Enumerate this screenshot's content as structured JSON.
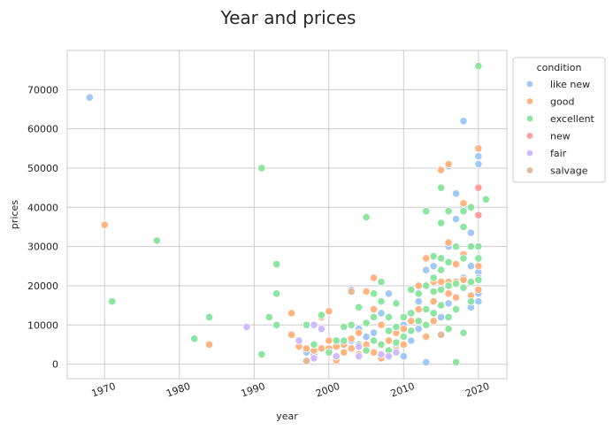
{
  "chart_data": {
    "type": "scatter",
    "title": "Year and prices",
    "xlabel": "year",
    "ylabel": "prices",
    "xlim": [
      1965,
      2023.8
    ],
    "ylim": [
      -3700,
      80000
    ],
    "xticks": [
      1970,
      1980,
      1990,
      2000,
      2010,
      2020
    ],
    "xtick_labels": [
      "1970",
      "1980",
      "1990",
      "2000",
      "2010",
      "2020"
    ],
    "yticks": [
      0,
      10000,
      20000,
      30000,
      40000,
      50000,
      60000,
      70000
    ],
    "ytick_labels": [
      "0",
      "10000",
      "20000",
      "30000",
      "40000",
      "50000",
      "60000",
      "70000"
    ],
    "grid": true,
    "legend": {
      "title": "condition",
      "placement": "outside-top-right",
      "entries": [
        {
          "label": "like new",
          "color": "#a1c9f4"
        },
        {
          "label": "good",
          "color": "#ffb482"
        },
        {
          "label": "excellent",
          "color": "#8de5a1"
        },
        {
          "label": "new",
          "color": "#ff9f9b"
        },
        {
          "label": "fair",
          "color": "#d0bbff"
        },
        {
          "label": "salvage",
          "color": "#debb9b"
        }
      ]
    },
    "series": [
      {
        "name": "like new",
        "color": "#a1c9f4",
        "points": [
          [
            1968,
            68000
          ],
          [
            1997,
            3000
          ],
          [
            1998,
            2500
          ],
          [
            2000,
            3500
          ],
          [
            2003,
            6000
          ],
          [
            2004,
            9000
          ],
          [
            2005,
            7000
          ],
          [
            2006,
            8000
          ],
          [
            2007,
            13000
          ],
          [
            2008,
            18000
          ],
          [
            2009,
            4000
          ],
          [
            2010,
            2000
          ],
          [
            2010,
            10000
          ],
          [
            2011,
            6000
          ],
          [
            2012,
            9000
          ],
          [
            2012,
            16000
          ],
          [
            2013,
            500
          ],
          [
            2013,
            24000
          ],
          [
            2014,
            25000
          ],
          [
            2015,
            12000
          ],
          [
            2016,
            15500
          ],
          [
            2016,
            50500
          ],
          [
            2016,
            30000
          ],
          [
            2017,
            43500
          ],
          [
            2017,
            37000
          ],
          [
            2018,
            62000
          ],
          [
            2018,
            40000
          ],
          [
            2018,
            22000
          ],
          [
            2019,
            33500
          ],
          [
            2019,
            14500
          ],
          [
            2019,
            25000
          ],
          [
            2020,
            53000
          ],
          [
            2020,
            51000
          ],
          [
            2020,
            23500
          ],
          [
            2020,
            22000
          ],
          [
            2020,
            18000
          ],
          [
            2020,
            16000
          ]
        ]
      },
      {
        "name": "good",
        "color": "#ffb482",
        "points": [
          [
            1970,
            35500
          ],
          [
            1984,
            5000
          ],
          [
            1995,
            7500
          ],
          [
            1995,
            13000
          ],
          [
            1996,
            4500
          ],
          [
            1997,
            4000
          ],
          [
            1998,
            3500
          ],
          [
            1999,
            4000
          ],
          [
            1999,
            12000
          ],
          [
            2000,
            13500
          ],
          [
            2000,
            6000
          ],
          [
            2000,
            4000
          ],
          [
            2001,
            1000
          ],
          [
            2001,
            4500
          ],
          [
            2002,
            3000
          ],
          [
            2002,
            5000
          ],
          [
            2003,
            4000
          ],
          [
            2003,
            6500
          ],
          [
            2004,
            2500
          ],
          [
            2004,
            8000
          ],
          [
            2005,
            18500
          ],
          [
            2005,
            5000
          ],
          [
            2006,
            22000
          ],
          [
            2006,
            14000
          ],
          [
            2006,
            3000
          ],
          [
            2007,
            1500
          ],
          [
            2007,
            10000
          ],
          [
            2008,
            6000
          ],
          [
            2009,
            8000
          ],
          [
            2009,
            3500
          ],
          [
            2010,
            5000
          ],
          [
            2010,
            9000
          ],
          [
            2011,
            11000
          ],
          [
            2012,
            20000
          ],
          [
            2012,
            14000
          ],
          [
            2013,
            27000
          ],
          [
            2013,
            7000
          ],
          [
            2014,
            21000
          ],
          [
            2014,
            16000
          ],
          [
            2014,
            11000
          ],
          [
            2015,
            49500
          ],
          [
            2015,
            21000
          ],
          [
            2015,
            7500
          ],
          [
            2016,
            51000
          ],
          [
            2016,
            31000
          ],
          [
            2016,
            21000
          ],
          [
            2016,
            18000
          ],
          [
            2017,
            25500
          ],
          [
            2017,
            21000
          ],
          [
            2017,
            17000
          ],
          [
            2018,
            41000
          ],
          [
            2018,
            28000
          ],
          [
            2018,
            21500
          ],
          [
            2019,
            17500
          ],
          [
            2020,
            55000
          ],
          [
            2020,
            38000
          ],
          [
            2020,
            25000
          ],
          [
            2020,
            19000
          ]
        ]
      },
      {
        "name": "excellent",
        "color": "#8de5a1",
        "points": [
          [
            1971,
            16000
          ],
          [
            1977,
            31500
          ],
          [
            1982,
            6500
          ],
          [
            1984,
            12000
          ],
          [
            1991,
            50000
          ],
          [
            1991,
            2500
          ],
          [
            1992,
            12000
          ],
          [
            1993,
            25500
          ],
          [
            1993,
            18000
          ],
          [
            1993,
            10000
          ],
          [
            1997,
            10000
          ],
          [
            1998,
            5000
          ],
          [
            1999,
            12500
          ],
          [
            2000,
            3000
          ],
          [
            2001,
            6000
          ],
          [
            2002,
            9500
          ],
          [
            2002,
            6000
          ],
          [
            2003,
            10000
          ],
          [
            2004,
            14500
          ],
          [
            2004,
            5000
          ],
          [
            2005,
            37500
          ],
          [
            2005,
            10500
          ],
          [
            2005,
            3500
          ],
          [
            2006,
            18000
          ],
          [
            2006,
            12000
          ],
          [
            2006,
            6000
          ],
          [
            2007,
            21000
          ],
          [
            2007,
            16000
          ],
          [
            2007,
            5000
          ],
          [
            2008,
            12000
          ],
          [
            2008,
            8500
          ],
          [
            2008,
            3500
          ],
          [
            2009,
            15500
          ],
          [
            2009,
            9500
          ],
          [
            2009,
            5500
          ],
          [
            2010,
            12000
          ],
          [
            2010,
            7000
          ],
          [
            2011,
            19000
          ],
          [
            2011,
            13000
          ],
          [
            2011,
            8500
          ],
          [
            2012,
            18000
          ],
          [
            2012,
            11000
          ],
          [
            2013,
            39000
          ],
          [
            2013,
            20000
          ],
          [
            2013,
            14000
          ],
          [
            2013,
            10000
          ],
          [
            2014,
            27500
          ],
          [
            2014,
            22000
          ],
          [
            2014,
            18500
          ],
          [
            2014,
            13000
          ],
          [
            2015,
            45000
          ],
          [
            2015,
            36000
          ],
          [
            2015,
            27000
          ],
          [
            2015,
            24000
          ],
          [
            2015,
            19000
          ],
          [
            2015,
            15000
          ],
          [
            2016,
            39000
          ],
          [
            2016,
            26000
          ],
          [
            2016,
            20000
          ],
          [
            2016,
            12000
          ],
          [
            2016,
            9000
          ],
          [
            2017,
            30000
          ],
          [
            2017,
            20500
          ],
          [
            2017,
            14000
          ],
          [
            2017,
            500
          ],
          [
            2018,
            39000
          ],
          [
            2018,
            35000
          ],
          [
            2018,
            27000
          ],
          [
            2018,
            19500
          ],
          [
            2018,
            8000
          ],
          [
            2019,
            40000
          ],
          [
            2019,
            30000
          ],
          [
            2019,
            21000
          ],
          [
            2019,
            16000
          ],
          [
            2020,
            76000
          ],
          [
            2020,
            30000
          ],
          [
            2020,
            27000
          ],
          [
            2020,
            21500
          ],
          [
            2021,
            42000
          ]
        ]
      },
      {
        "name": "new",
        "color": "#ff9f9b",
        "points": [
          [
            2020,
            45000
          ],
          [
            2020,
            38000
          ]
        ]
      },
      {
        "name": "fair",
        "color": "#d0bbff",
        "points": [
          [
            1989,
            9500
          ],
          [
            1996,
            6000
          ],
          [
            1998,
            1500
          ],
          [
            1998,
            10000
          ],
          [
            1999,
            9000
          ],
          [
            2001,
            2000
          ],
          [
            2003,
            19000
          ],
          [
            2004,
            2000
          ],
          [
            2004,
            4500
          ],
          [
            2007,
            2500
          ],
          [
            2008,
            2000
          ],
          [
            2009,
            3000
          ]
        ]
      },
      {
        "name": "salvage",
        "color": "#debb9b",
        "points": [
          [
            1997,
            800
          ],
          [
            2003,
            18500
          ],
          [
            2015,
            7500
          ]
        ]
      }
    ]
  }
}
